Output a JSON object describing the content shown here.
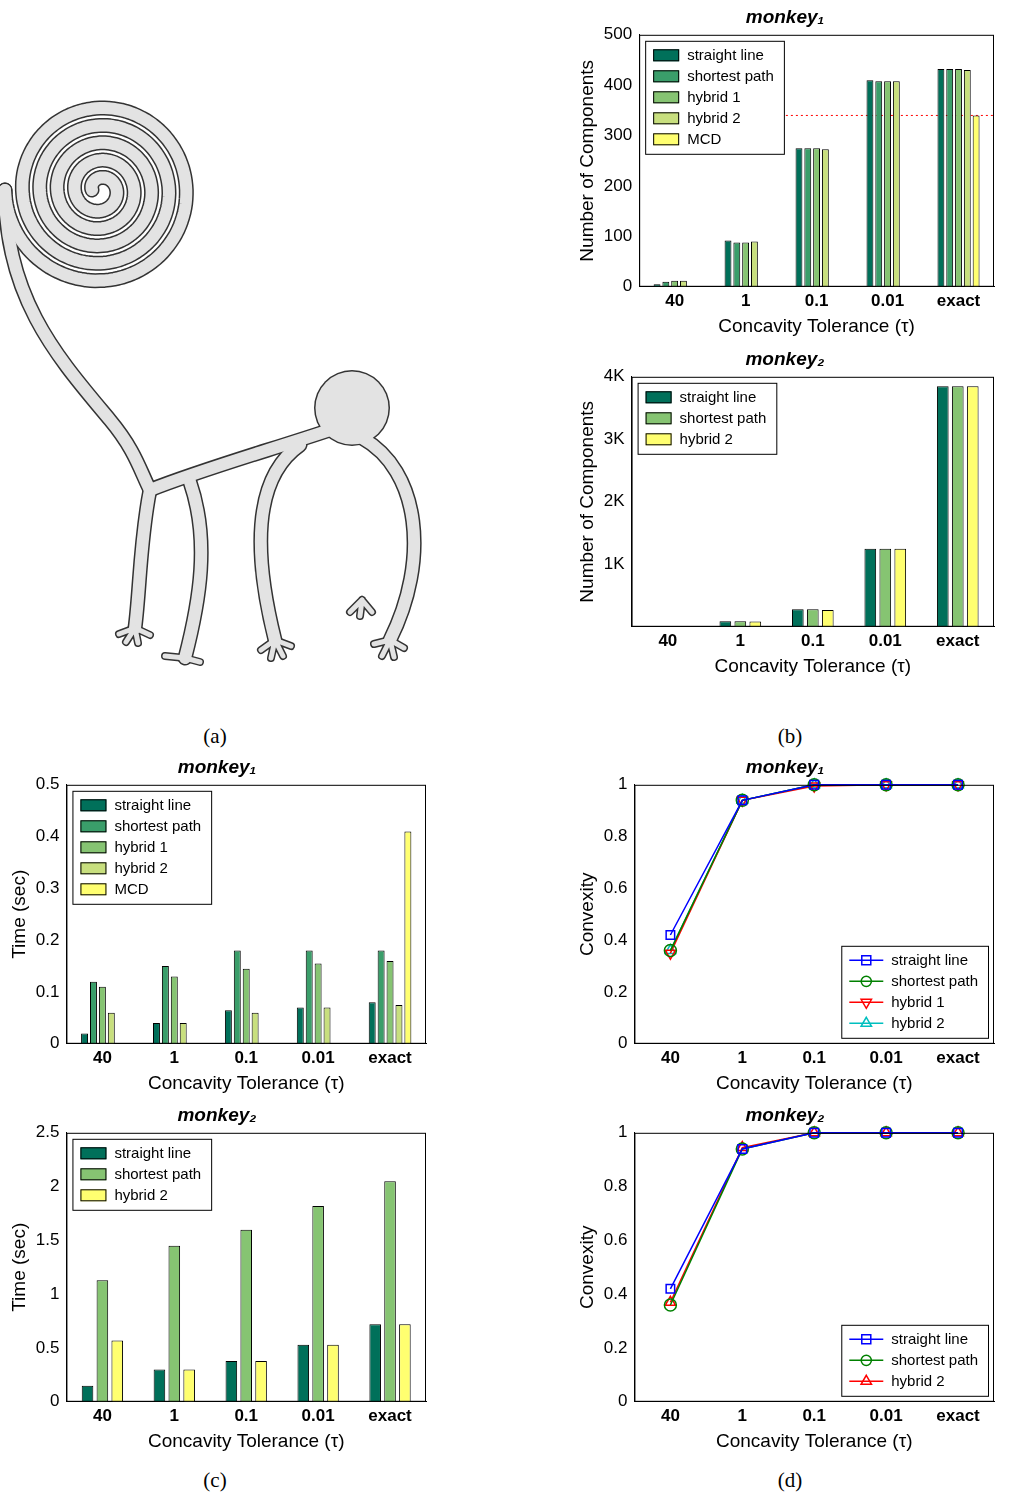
{
  "panel_labels": [
    "(a)",
    "(b)",
    "(c)",
    "(d)"
  ],
  "chart_data": [
    {
      "type": "bar",
      "title": "monkey₁",
      "x_label": "Concavity Tolerance (τ)",
      "y_label": "Number of Components",
      "categories": [
        "40",
        "1",
        "0.1",
        "0.01",
        "exact"
      ],
      "series": [
        {
          "name": "straight line",
          "color": "#00705a",
          "values": [
            5,
            92,
            275,
            410,
            432
          ]
        },
        {
          "name": "shortest path",
          "color": "#3a9e6a",
          "values": [
            10,
            88,
            275,
            408,
            432
          ]
        },
        {
          "name": "hybrid 1",
          "color": "#86c472",
          "values": [
            12,
            88,
            275,
            408,
            432
          ]
        },
        {
          "name": "hybrid 2",
          "color": "#c8df7e",
          "values": [
            12,
            90,
            273,
            408,
            430
          ]
        },
        {
          "name": "MCD",
          "color": "#ffff70",
          "values": [
            null,
            null,
            null,
            null,
            340
          ]
        }
      ],
      "ylim": [
        0,
        500
      ],
      "yticks": [
        0,
        100,
        200,
        300,
        400,
        500
      ],
      "grid": false,
      "legend": "upper left",
      "annotations": [
        {
          "type": "hline",
          "value": 340,
          "color": "#ff0000",
          "line_style": "dotted"
        }
      ]
    },
    {
      "type": "bar",
      "title": "monkey₂",
      "x_label": "Concavity Tolerance (τ)",
      "y_label": "Number of Components",
      "categories": [
        "40",
        "1",
        "0.1",
        "0.01",
        "exact"
      ],
      "series": [
        {
          "name": "straight line",
          "color": "#00705a",
          "values": [
            5,
            90,
            280,
            1250,
            3850
          ]
        },
        {
          "name": "shortest path",
          "color": "#86c472",
          "values": [
            5,
            90,
            280,
            1250,
            3850
          ]
        },
        {
          "name": "hybrid 2",
          "color": "#ffff70",
          "values": [
            5,
            85,
            270,
            1250,
            3850
          ]
        }
      ],
      "ylim": [
        0,
        4000
      ],
      "yticks": [
        {
          "value": 1000,
          "label": "1K"
        },
        {
          "value": 2000,
          "label": "2K"
        },
        {
          "value": 3000,
          "label": "3K"
        },
        {
          "value": 4000,
          "label": "4K"
        }
      ],
      "grid": false,
      "legend": "upper left"
    },
    {
      "type": "bar",
      "title": "monkey₁",
      "x_label": "Concavity Tolerance (τ)",
      "y_label": "Time (sec)",
      "categories": [
        "40",
        "1",
        "0.1",
        "0.01",
        "exact"
      ],
      "series": [
        {
          "name": "straight line",
          "color": "#00705a",
          "values": [
            0.02,
            0.04,
            0.065,
            0.07,
            0.08
          ]
        },
        {
          "name": "shortest path",
          "color": "#3a9e6a",
          "values": [
            0.12,
            0.15,
            0.18,
            0.18,
            0.18
          ]
        },
        {
          "name": "hybrid 1",
          "color": "#86c472",
          "values": [
            0.11,
            0.13,
            0.145,
            0.155,
            0.16
          ]
        },
        {
          "name": "hybrid 2",
          "color": "#c8df7e",
          "values": [
            0.06,
            0.04,
            0.06,
            0.07,
            0.075
          ]
        },
        {
          "name": "MCD",
          "color": "#ffff70",
          "values": [
            null,
            null,
            null,
            null,
            0.41
          ]
        }
      ],
      "ylim": [
        0,
        0.5
      ],
      "yticks": [
        0,
        0.1,
        0.2,
        0.3,
        0.4,
        0.5
      ],
      "grid": false,
      "legend": "upper left"
    },
    {
      "type": "bar",
      "title": "monkey₂",
      "x_label": "Concavity Tolerance (τ)",
      "y_label": "Time (sec)",
      "categories": [
        "40",
        "1",
        "0.1",
        "0.01",
        "exact"
      ],
      "series": [
        {
          "name": "straight line",
          "color": "#00705a",
          "values": [
            0.15,
            0.3,
            0.38,
            0.53,
            0.72
          ]
        },
        {
          "name": "shortest path",
          "color": "#86c472",
          "values": [
            1.13,
            1.45,
            1.6,
            1.82,
            2.05
          ]
        },
        {
          "name": "hybrid 2",
          "color": "#ffff70",
          "values": [
            0.57,
            0.3,
            0.38,
            0.53,
            0.72
          ]
        }
      ],
      "ylim": [
        0,
        2.5
      ],
      "yticks": [
        0,
        0.5,
        1,
        1.5,
        2,
        2.5
      ],
      "grid": false,
      "legend": "upper left"
    },
    {
      "type": "line",
      "title": "monkey₁",
      "x_label": "Concavity Tolerance (τ)",
      "y_label": "Convexity",
      "categories": [
        "40",
        "1",
        "0.1",
        "0.01",
        "exact"
      ],
      "series": [
        {
          "name": "straight line",
          "color": "#0000ff",
          "marker": "square",
          "values": [
            0.42,
            0.94,
            1.0,
            1.0,
            1.0
          ]
        },
        {
          "name": "shortest path",
          "color": "#008000",
          "marker": "circle",
          "values": [
            0.36,
            0.94,
            1.0,
            1.0,
            1.0
          ]
        },
        {
          "name": "hybrid 1",
          "color": "#ff0000",
          "marker": "triangle_down",
          "values": [
            0.35,
            0.94,
            0.995,
            1.0,
            1.0
          ]
        },
        {
          "name": "hybrid 2",
          "color": "#00bfbf",
          "marker": "triangle",
          "values": [
            0.36,
            0.94,
            1.0,
            1.0,
            1.0
          ]
        }
      ],
      "ylim": [
        0,
        1
      ],
      "yticks": [
        0,
        0.2,
        0.4,
        0.6,
        0.8,
        1
      ],
      "grid": false,
      "legend": "lower right"
    },
    {
      "type": "line",
      "title": "monkey₂",
      "x_label": "Concavity Tolerance (τ)",
      "y_label": "Convexity",
      "categories": [
        "40",
        "1",
        "0.1",
        "0.01",
        "exact"
      ],
      "series": [
        {
          "name": "straight line",
          "color": "#0000ff",
          "marker": "square",
          "values": [
            0.42,
            0.94,
            1.0,
            1.0,
            1.0
          ]
        },
        {
          "name": "shortest path",
          "color": "#008000",
          "marker": "circle",
          "values": [
            0.36,
            0.94,
            1.0,
            1.0,
            1.0
          ]
        },
        {
          "name": "hybrid 2",
          "color": "#ff0000",
          "marker": "triangle",
          "values": [
            0.37,
            0.945,
            1.0,
            1.0,
            1.0
          ]
        }
      ],
      "ylim": [
        0,
        1
      ],
      "yticks": [
        0,
        0.2,
        0.4,
        0.6,
        0.8,
        1
      ],
      "grid": false,
      "legend": "lower right"
    }
  ]
}
